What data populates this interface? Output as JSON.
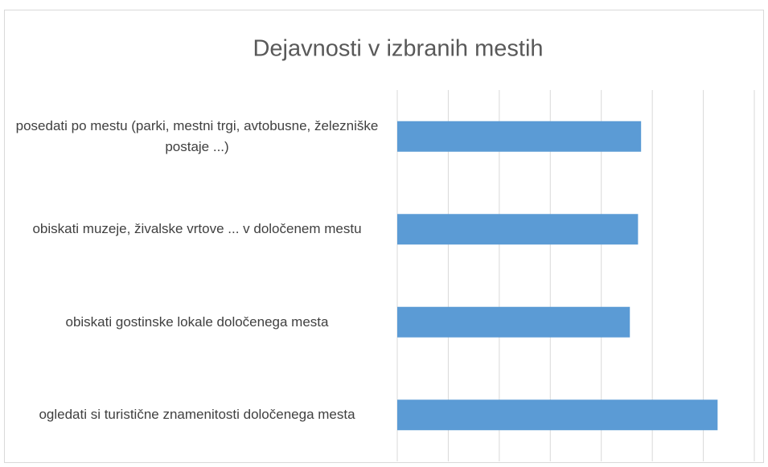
{
  "chart_data": {
    "type": "bar",
    "orientation": "horizontal",
    "title": "Dejavnosti v izbranih mestih",
    "categories": [
      "posedati po mestu (parki, mestni trgi, avtobusne, železniške postaje ...)",
      "obiskati muzeje, živalske vrtove ... v določenem mestu",
      "obiskati gostinske lokale določenega mesta",
      "ogledati si turistične znamenitosti določenega mesta"
    ],
    "values": [
      4.78,
      4.72,
      4.56,
      6.28
    ],
    "color": "#5b9bd5",
    "xlim": [
      0,
      7
    ],
    "xticks": [
      0,
      1,
      2,
      3,
      4,
      5,
      6,
      7
    ],
    "grid": true
  }
}
